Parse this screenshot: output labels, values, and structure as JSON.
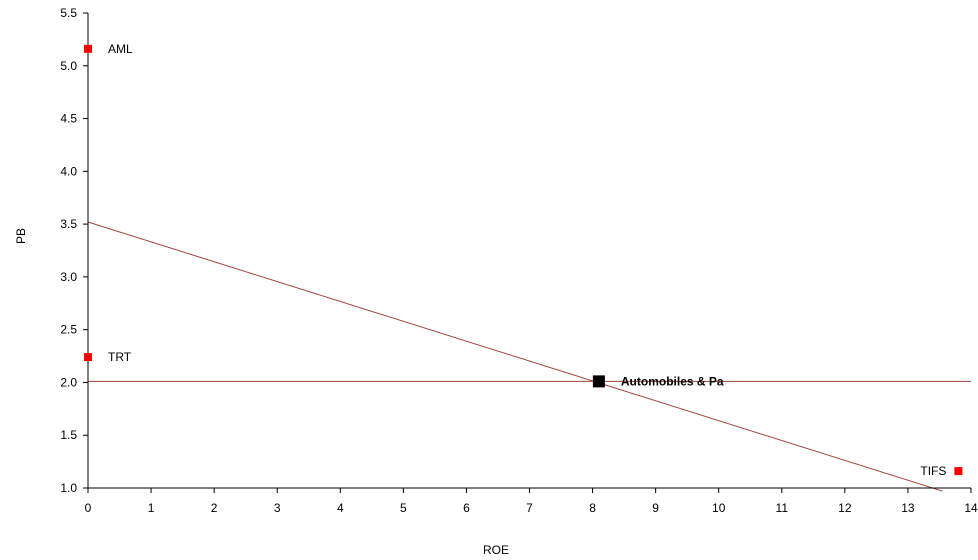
{
  "chart_data": {
    "type": "scatter",
    "xlabel": "ROE",
    "ylabel": "PB",
    "xlim": [
      0,
      14
    ],
    "ylim": [
      1.0,
      5.5
    ],
    "x_ticks": [
      0,
      1,
      2,
      3,
      4,
      5,
      6,
      7,
      8,
      9,
      10,
      11,
      12,
      13,
      14
    ],
    "y_ticks": [
      1.0,
      1.5,
      2.0,
      2.5,
      3.0,
      3.5,
      4.0,
      4.5,
      5.0,
      5.5
    ],
    "grid": false,
    "points": [
      {
        "label": "AML",
        "x": 0.0,
        "y": 5.16,
        "color": "#ff0000",
        "highlight": false
      },
      {
        "label": "TRT",
        "x": 0.0,
        "y": 2.24,
        "color": "#ff0000",
        "highlight": false
      },
      {
        "label": "TIFS",
        "x": 13.8,
        "y": 1.16,
        "color": "#ff0000",
        "highlight": false
      },
      {
        "label": "Automobiles & Pa",
        "x": 8.1,
        "y": 2.01,
        "color": "#000000",
        "highlight": true
      }
    ],
    "reference_lines": [
      {
        "kind": "horizontal",
        "y": 2.01,
        "color": "#a0413a"
      },
      {
        "kind": "trend",
        "points": [
          [
            0,
            3.52
          ],
          [
            13.55,
            0.97
          ]
        ],
        "color": "#a0413a"
      }
    ],
    "axis_color": "#000000"
  }
}
